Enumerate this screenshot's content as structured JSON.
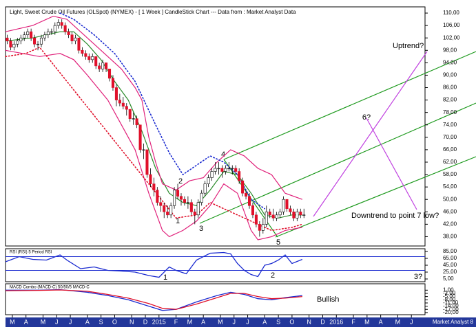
{
  "chart_data": [
    {
      "type": "candlestick",
      "title": "Light, Sweet Crude Oil Futures (OLSpot) (NYMEX) -  [ 1 Week ] CandleStick Chart --- Data from : Market Analyst Data",
      "credit": "Market Analyst 8",
      "xlim": [
        0,
        123
      ],
      "xticks": [
        {
          "value": 2,
          "label": "M"
        },
        {
          "value": 6,
          "label": "A"
        },
        {
          "value": 11,
          "label": "M"
        },
        {
          "value": 15,
          "label": "J"
        },
        {
          "value": 19,
          "label": "J"
        },
        {
          "value": 24,
          "label": "A"
        },
        {
          "value": 28,
          "label": "S"
        },
        {
          "value": 32,
          "label": "O"
        },
        {
          "value": 37,
          "label": "N"
        },
        {
          "value": 41,
          "label": "D"
        },
        {
          "value": 45,
          "label": "2015"
        },
        {
          "value": 50,
          "label": "F"
        },
        {
          "value": 54,
          "label": "M"
        },
        {
          "value": 58,
          "label": "A"
        },
        {
          "value": 63,
          "label": "M"
        },
        {
          "value": 67,
          "label": "J"
        },
        {
          "value": 71,
          "label": "J"
        },
        {
          "value": 76,
          "label": "A"
        },
        {
          "value": 80,
          "label": "S"
        },
        {
          "value": 84,
          "label": "O"
        },
        {
          "value": 89,
          "label": "N"
        },
        {
          "value": 93,
          "label": "D"
        },
        {
          "value": 97,
          "label": "2016"
        },
        {
          "value": 102,
          "label": "F"
        },
        {
          "value": 106,
          "label": "M"
        },
        {
          "value": 110,
          "label": "A"
        },
        {
          "value": 115,
          "label": "M"
        },
        {
          "value": 119,
          "label": "J"
        }
      ],
      "ylim": [
        35,
        112
      ],
      "yticks": [
        {
          "value": 110,
          "label": "110,00"
        },
        {
          "value": 106,
          "label": "106,00"
        },
        {
          "value": 102,
          "label": "102,00"
        },
        {
          "value": 98,
          "label": "98,00"
        },
        {
          "value": 94,
          "label": "94,00"
        },
        {
          "value": 90,
          "label": "90,00"
        },
        {
          "value": 86,
          "label": "86,00"
        },
        {
          "value": 82,
          "label": "82,00"
        },
        {
          "value": 78,
          "label": "78,00"
        },
        {
          "value": 74,
          "label": "74,00"
        },
        {
          "value": 70,
          "label": "70,00"
        },
        {
          "value": 66,
          "label": "66,00"
        },
        {
          "value": 62,
          "label": "62,00"
        },
        {
          "value": 58,
          "label": "58,00"
        },
        {
          "value": 54,
          "label": "54,00"
        },
        {
          "value": 50,
          "label": "50,00"
        },
        {
          "value": 46,
          "label": "46,00"
        },
        {
          "value": 42,
          "label": "42,00"
        },
        {
          "value": 38,
          "label": "38,00"
        }
      ],
      "up_color": "#ffffff",
      "down_color": "#e0102a",
      "values": [
        [
          102,
          103,
          100,
          101
        ],
        [
          101,
          102,
          98,
          99
        ],
        [
          99,
          101,
          98,
          100
        ],
        [
          100,
          102,
          99,
          101
        ],
        [
          101,
          103,
          100,
          102
        ],
        [
          102,
          104,
          101,
          103
        ],
        [
          103,
          105,
          102,
          104
        ],
        [
          104,
          105,
          101,
          102
        ],
        [
          102,
          103,
          99,
          100
        ],
        [
          100,
          101,
          98,
          100
        ],
        [
          100,
          103,
          99,
          102
        ],
        [
          102,
          104,
          101,
          103
        ],
        [
          103,
          105,
          102,
          104
        ],
        [
          104,
          105,
          103,
          104
        ],
        [
          104,
          107,
          103,
          106
        ],
        [
          106,
          108,
          105,
          107
        ],
        [
          107,
          108,
          105,
          106
        ],
        [
          106,
          107,
          103,
          104
        ],
        [
          104,
          105,
          102,
          103
        ],
        [
          103,
          104,
          100,
          101
        ],
        [
          101,
          103,
          100,
          102
        ],
        [
          102,
          102,
          97,
          98
        ],
        [
          98,
          99,
          96,
          97
        ],
        [
          97,
          98,
          95,
          96
        ],
        [
          96,
          97,
          94,
          95
        ],
        [
          95,
          97,
          94,
          96
        ],
        [
          96,
          96,
          92,
          93
        ],
        [
          93,
          94,
          91,
          92
        ],
        [
          92,
          95,
          91,
          94
        ],
        [
          94,
          94,
          91,
          92
        ],
        [
          92,
          92,
          88,
          89
        ],
        [
          89,
          90,
          85,
          86
        ],
        [
          86,
          87,
          80,
          82
        ],
        [
          82,
          84,
          80,
          81
        ],
        [
          81,
          83,
          79,
          80
        ],
        [
          80,
          81,
          77,
          79
        ],
        [
          79,
          79,
          75,
          76
        ],
        [
          76,
          78,
          74,
          76
        ],
        [
          76,
          77,
          73,
          74
        ],
        [
          74,
          74,
          65,
          66
        ],
        [
          66,
          68,
          63,
          66
        ],
        [
          66,
          66,
          57,
          58
        ],
        [
          58,
          60,
          54,
          55
        ],
        [
          55,
          57,
          51,
          53
        ],
        [
          53,
          54,
          48,
          49
        ],
        [
          49,
          51,
          46,
          48
        ],
        [
          48,
          49,
          44,
          46
        ],
        [
          46,
          48,
          44,
          45
        ],
        [
          45,
          49,
          44,
          48
        ],
        [
          48,
          54,
          47,
          53
        ],
        [
          53,
          55,
          50,
          51
        ],
        [
          51,
          52,
          48,
          50
        ],
        [
          50,
          51,
          48,
          49
        ],
        [
          49,
          51,
          47,
          49
        ],
        [
          49,
          50,
          45,
          46
        ],
        [
          46,
          47,
          42,
          45
        ],
        [
          45,
          50,
          44,
          49
        ],
        [
          49,
          53,
          48,
          52
        ],
        [
          52,
          56,
          51,
          55
        ],
        [
          55,
          58,
          54,
          57
        ],
        [
          57,
          60,
          56,
          59
        ],
        [
          59,
          62,
          58,
          60
        ],
        [
          60,
          62,
          58,
          60
        ],
        [
          60,
          61,
          57,
          59
        ],
        [
          59,
          61,
          58,
          60
        ],
        [
          60,
          62,
          59,
          60
        ],
        [
          60,
          61,
          58,
          60
        ],
        [
          60,
          61,
          58,
          59
        ],
        [
          59,
          60,
          55,
          56
        ],
        [
          56,
          57,
          51,
          52
        ],
        [
          52,
          53,
          50,
          51
        ],
        [
          51,
          52,
          47,
          48
        ],
        [
          48,
          49,
          44,
          45
        ],
        [
          45,
          46,
          41,
          42
        ],
        [
          42,
          43,
          38,
          40
        ],
        [
          40,
          44,
          39,
          42
        ],
        [
          42,
          48,
          41,
          46
        ],
        [
          46,
          47,
          44,
          45
        ],
        [
          45,
          47,
          43,
          44
        ],
        [
          44,
          46,
          43,
          45
        ],
        [
          45,
          47,
          44,
          46
        ],
        [
          46,
          51,
          45,
          50
        ],
        [
          50,
          50,
          46,
          47
        ],
        [
          47,
          48,
          45,
          46
        ],
        [
          46,
          47,
          43,
          44
        ],
        [
          44,
          47,
          43,
          46
        ],
        [
          46,
          47,
          44,
          45
        ],
        [
          45,
          47,
          44,
          45
        ]
      ],
      "overlays": [
        {
          "color": "#2a8a2a",
          "style": "solid",
          "x": [
            0,
            8,
            16,
            20,
            24,
            28,
            32,
            36,
            40,
            44,
            48,
            52,
            56,
            60,
            64,
            68,
            72,
            76,
            80,
            84,
            87
          ],
          "values": [
            101,
            102,
            104,
            104,
            100,
            95,
            88,
            82,
            72,
            60,
            52,
            49,
            48,
            53,
            59,
            58,
            52,
            45,
            44,
            45,
            45
          ]
        },
        {
          "color": "#e0207a",
          "style": "solid",
          "x": [
            0,
            8,
            14,
            18,
            22,
            26,
            30,
            34,
            38,
            40,
            42,
            44,
            46,
            50,
            54,
            58,
            62,
            66,
            70,
            74,
            78,
            82,
            87
          ],
          "values": [
            104,
            106,
            109,
            108,
            104,
            100,
            96,
            92,
            86,
            82,
            70,
            62,
            55,
            53,
            56,
            57,
            62,
            66,
            64,
            60,
            58,
            52,
            50
          ]
        },
        {
          "color": "#e0207a",
          "style": "solid",
          "x": [
            0,
            10,
            16,
            20,
            24,
            30,
            34,
            38,
            42,
            46,
            48,
            52,
            56,
            60,
            64,
            68,
            72,
            74,
            78,
            82,
            87
          ],
          "values": [
            98,
            96,
            97,
            95,
            90,
            82,
            74,
            66,
            52,
            40,
            38,
            40,
            43,
            48,
            55,
            52,
            40,
            37,
            38,
            40,
            41
          ]
        },
        {
          "color": "#1a2ad0",
          "style": "dotted",
          "x": [
            16,
            20,
            26,
            32,
            38,
            44,
            48,
            52,
            60,
            64,
            68,
            72,
            76
          ],
          "values": [
            110,
            108,
            103,
            97,
            88,
            74,
            65,
            58,
            64,
            62,
            58,
            50,
            47
          ]
        },
        {
          "color": "#e0102a",
          "style": "dotted",
          "x": [
            0,
            6,
            10,
            50,
            56,
            60,
            78,
            84,
            87
          ],
          "values": [
            96,
            97,
            99,
            44,
            45,
            49,
            40,
            41,
            42
          ]
        }
      ],
      "annotations": [
        "1",
        "2",
        "3",
        "4",
        "5",
        "6?",
        "Uptrend?",
        "Downtrend to point 7 low?"
      ]
    },
    {
      "type": "line",
      "title": "RSI (RSI) 5 Period RSI",
      "xlim": [
        0,
        123
      ],
      "ylim": [
        -3,
        93
      ],
      "yticks": [
        {
          "value": 85,
          "label": "85,00"
        },
        {
          "value": 65,
          "label": "65,00"
        },
        {
          "value": 45,
          "label": "45,00"
        },
        {
          "value": 25,
          "label": "25,00"
        },
        {
          "value": 5,
          "label": "5,00"
        }
      ],
      "levels": [
        70,
        30
      ],
      "level_color": "#1a2ad0",
      "series": [
        {
          "color": "#1a2ad0",
          "x": [
            0,
            4,
            8,
            12,
            16,
            18,
            22,
            26,
            30,
            34,
            38,
            42,
            45,
            48,
            50,
            53,
            56,
            60,
            64,
            66,
            68,
            70,
            72,
            74,
            76,
            78,
            80,
            82,
            84,
            87
          ],
          "values": [
            55,
            70,
            62,
            60,
            75,
            60,
            35,
            40,
            30,
            28,
            25,
            15,
            10,
            40,
            30,
            20,
            60,
            80,
            82,
            78,
            50,
            30,
            18,
            12,
            45,
            50,
            60,
            75,
            50,
            62
          ]
        }
      ],
      "annotations": [
        "1",
        "2",
        "3?"
      ]
    },
    {
      "type": "line",
      "title": "MACD Combo (MACD-C) 50/50/5 MACD-C",
      "xlim": [
        0,
        123
      ],
      "ylim": [
        -22,
        7
      ],
      "yticks": [
        {
          "value": 1,
          "label": "1,00"
        },
        {
          "value": -2,
          "label": "-2,00"
        },
        {
          "value": -5,
          "label": "-5,00"
        },
        {
          "value": -8,
          "label": "-8,00"
        },
        {
          "value": -11,
          "label": "-11,00"
        },
        {
          "value": -14,
          "label": "-14,00"
        },
        {
          "value": -17,
          "label": "-17,00"
        },
        {
          "value": -20,
          "label": "-20,00"
        }
      ],
      "series": [
        {
          "color": "#1a2ad0",
          "x": [
            0,
            10,
            16,
            24,
            30,
            36,
            42,
            46,
            50,
            56,
            62,
            66,
            70,
            74,
            78,
            82,
            87
          ],
          "values": [
            1,
            1,
            1.5,
            -1,
            -4,
            -8,
            -14,
            -18,
            -17,
            -10,
            -4,
            -1,
            -3,
            -7,
            -8,
            -6,
            -4
          ]
        },
        {
          "color": "#e0102a",
          "x": [
            0,
            10,
            16,
            24,
            30,
            36,
            42,
            46,
            50,
            56,
            62,
            66,
            70,
            74,
            78,
            82,
            87
          ],
          "values": [
            0.5,
            0.8,
            1.2,
            0,
            -3,
            -6.5,
            -11.5,
            -16,
            -17,
            -12,
            -6,
            -2,
            -2,
            -5,
            -7,
            -6.5,
            -5
          ]
        }
      ],
      "annotations": [
        "Bullish"
      ]
    }
  ]
}
